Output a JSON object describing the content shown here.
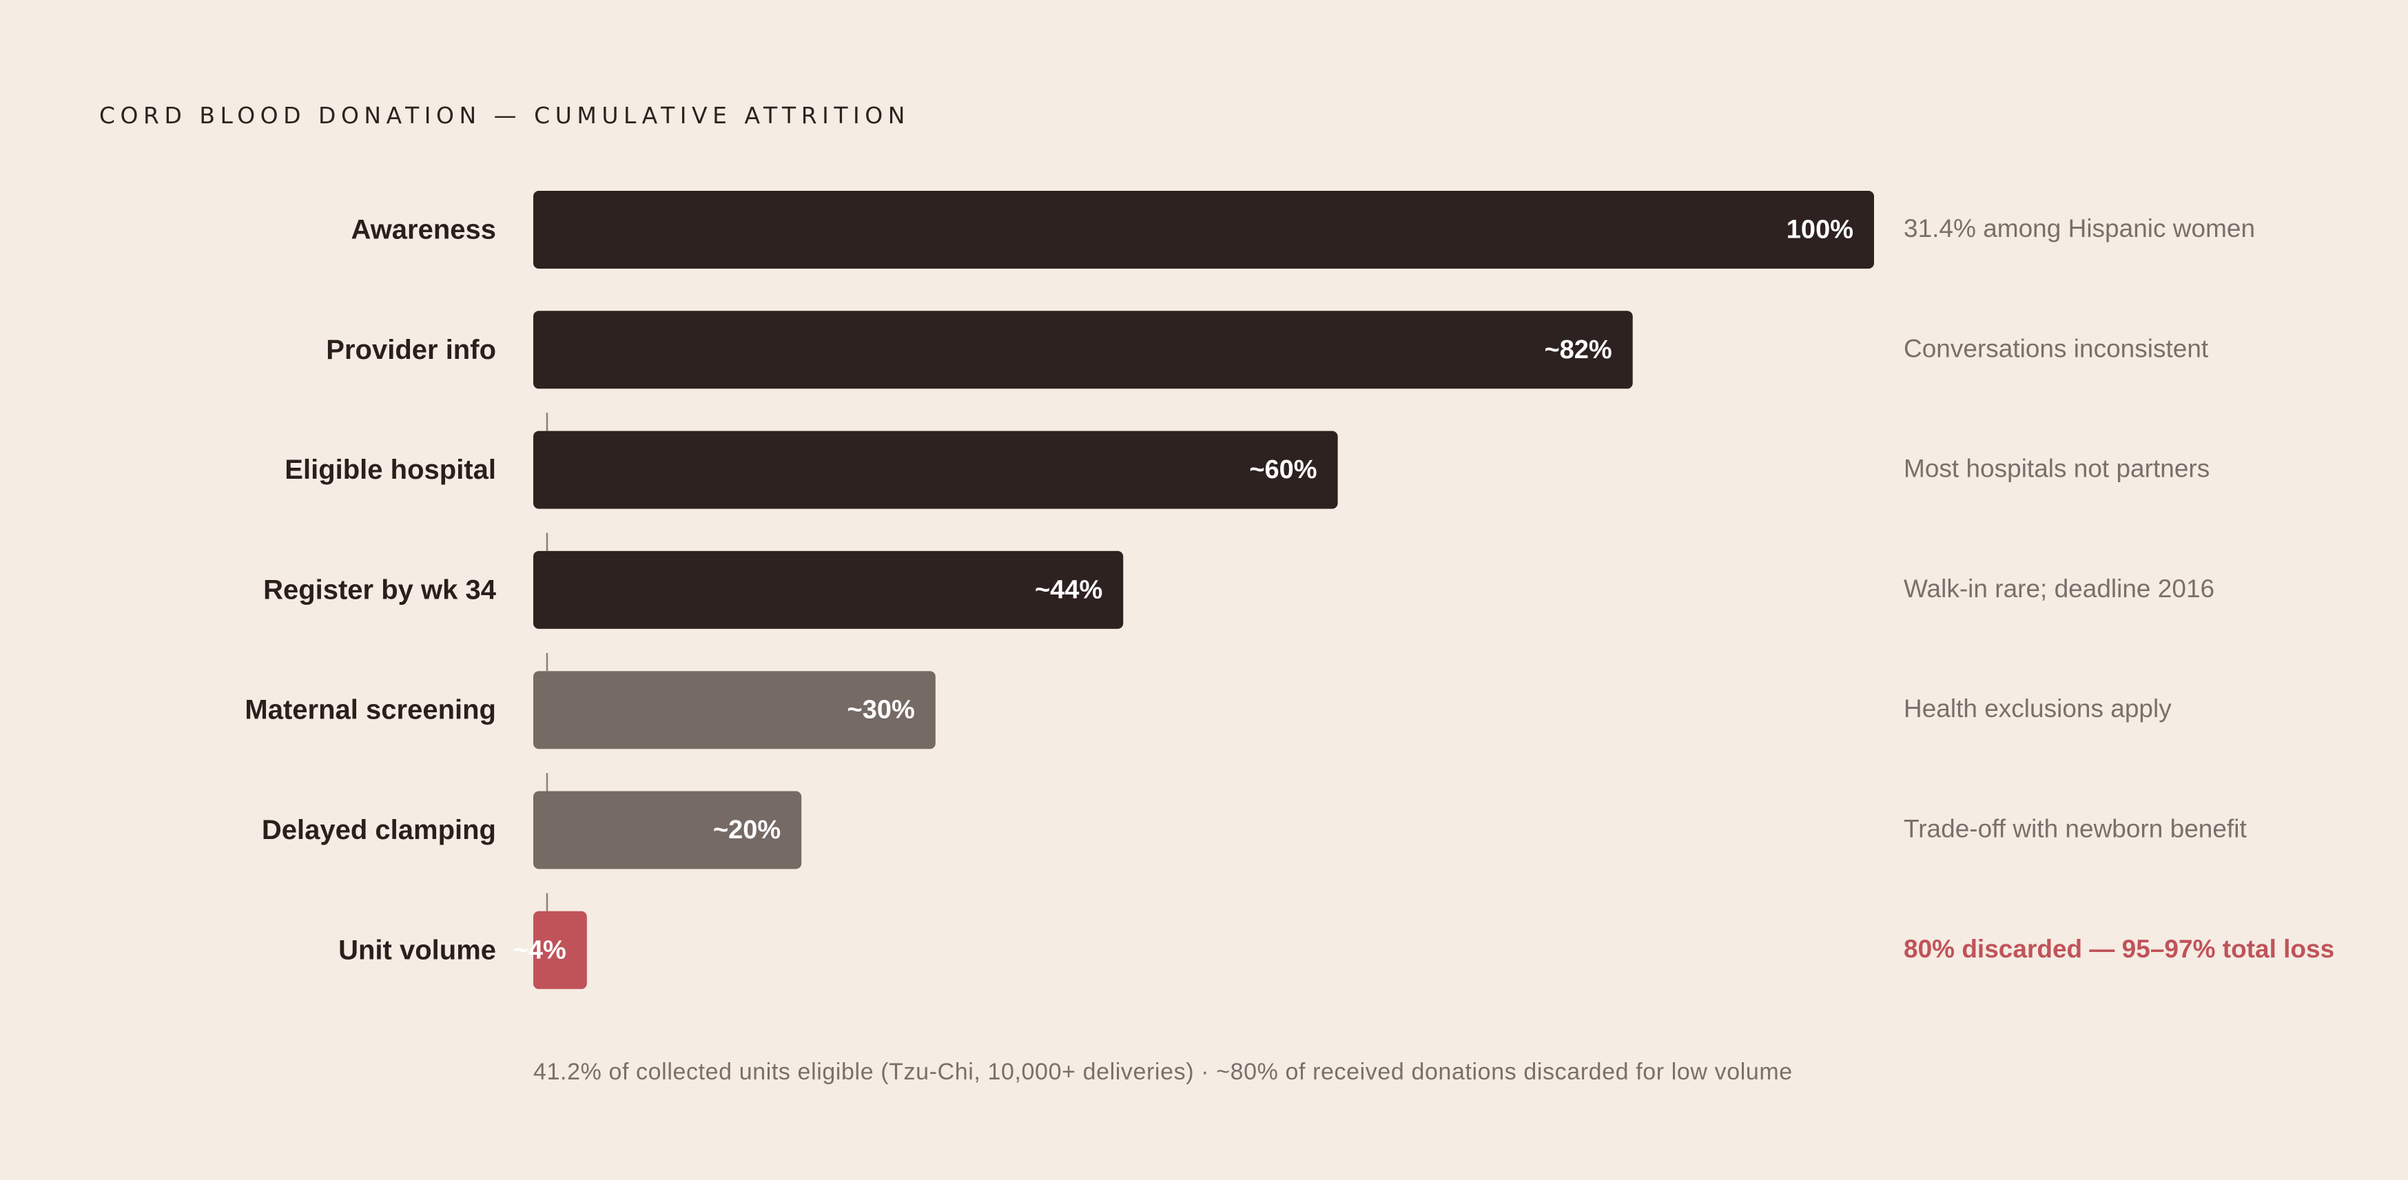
{
  "chart_data": {
    "type": "bar",
    "orientation": "horizontal",
    "title": "CORD BLOOD DONATION — CUMULATIVE ATTRITION",
    "xlim": [
      0,
      100
    ],
    "grid": false,
    "legend": "none",
    "categories": [
      "Awareness",
      "Provider info",
      "Eligible hospital",
      "Register by wk 34",
      "Maternal screening",
      "Delayed clamping",
      "Unit volume"
    ],
    "values": [
      100,
      82,
      60,
      44,
      30,
      20,
      4
    ],
    "value_labels": [
      "100%",
      "~82%",
      "~60%",
      "~44%",
      "~30%",
      "~20%",
      "~4%"
    ],
    "notes": [
      "31.4% among Hispanic women",
      "Conversations inconsistent",
      "Most hospitals not partners",
      "Walk-in rare; deadline 2016",
      "Health exclusions apply",
      "Trade-off with newborn benefit",
      "80% discarded — 95–97% total loss"
    ],
    "bar_colors": [
      "#2e2220",
      "#2e2220",
      "#2e2220",
      "#2e2220",
      "#766a65",
      "#766a65",
      "#c0535a"
    ],
    "highlight_note_index": 6,
    "highlight_color": "#c0535a",
    "footnote": "41.2% of collected units eligible (Tzu-Chi, 10,000+ deliveries) · ~80% of received donations discarded for low volume"
  }
}
